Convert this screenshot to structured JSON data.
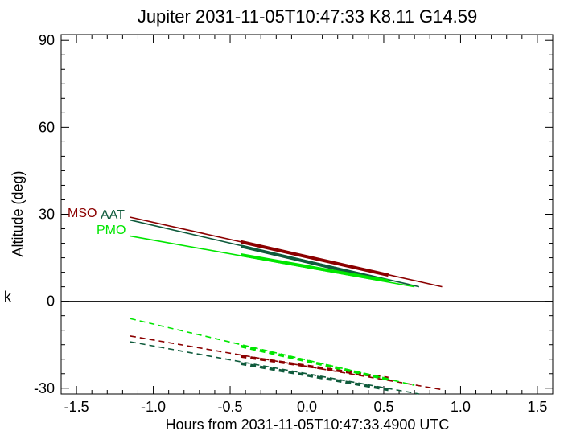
{
  "chart_data": {
    "type": "line",
    "title": "Jupiter 2031-11-05T10:47:33  K8.11  G14.59",
    "xlabel": "Hours from 2031-11-05T10:47:33.4900 UTC",
    "ylabel": "Altitude (deg)",
    "xlim": [
      -1.6,
      1.6
    ],
    "ylim": [
      -32,
      92
    ],
    "xticks": [
      -1.5,
      -1.0,
      -0.5,
      0.0,
      0.5,
      1.0,
      1.5
    ],
    "xtick_labels": [
      "-1.5",
      "-1.0",
      "-0.5",
      "0.0",
      "0.5",
      "1.0",
      "1.5"
    ],
    "yticks": [
      -30,
      0,
      30,
      60,
      90
    ],
    "ytick_labels": [
      "-30",
      "0",
      "30",
      "60",
      "90"
    ],
    "zero_line": true,
    "side_label": "k",
    "series": [
      {
        "name": "MSO",
        "color": "#8b0000",
        "x": [
          -1.15,
          0.88
        ],
        "y": [
          29.0,
          5.0
        ],
        "thick_x": [
          -0.43,
          0.53
        ],
        "thick_y": [
          20.5,
          9.0
        ],
        "dashed_x": [
          -1.15,
          0.88
        ],
        "dashed_y": [
          -12.0,
          -30.5
        ],
        "dashed_thick_x": [
          -0.43,
          0.53
        ],
        "dashed_thick_y": [
          -19.0,
          -26.5
        ]
      },
      {
        "name": "AAT",
        "color": "#0f5b3c",
        "x": [
          -1.15,
          0.73
        ],
        "y": [
          28.0,
          5.0
        ],
        "thick_x": [
          -0.43,
          0.53
        ],
        "thick_y": [
          19.0,
          7.0
        ],
        "dashed_x": [
          -1.15,
          0.73
        ],
        "dashed_y": [
          -14.0,
          -32.0
        ],
        "dashed_thick_x": [
          -0.43,
          0.53
        ],
        "dashed_thick_y": [
          -21.5,
          -30.5
        ]
      },
      {
        "name": "PMO",
        "color": "#00e600",
        "x": [
          -1.15,
          0.7
        ],
        "y": [
          22.5,
          5.0
        ],
        "thick_x": [
          -0.43,
          0.53
        ],
        "thick_y": [
          16.0,
          7.0
        ],
        "dashed_x": [
          -1.15,
          0.7
        ],
        "dashed_y": [
          -6.0,
          -29.0
        ],
        "dashed_thick_x": [
          -0.43,
          0.53
        ],
        "dashed_thick_y": [
          -15.5,
          -27.0
        ]
      }
    ]
  }
}
